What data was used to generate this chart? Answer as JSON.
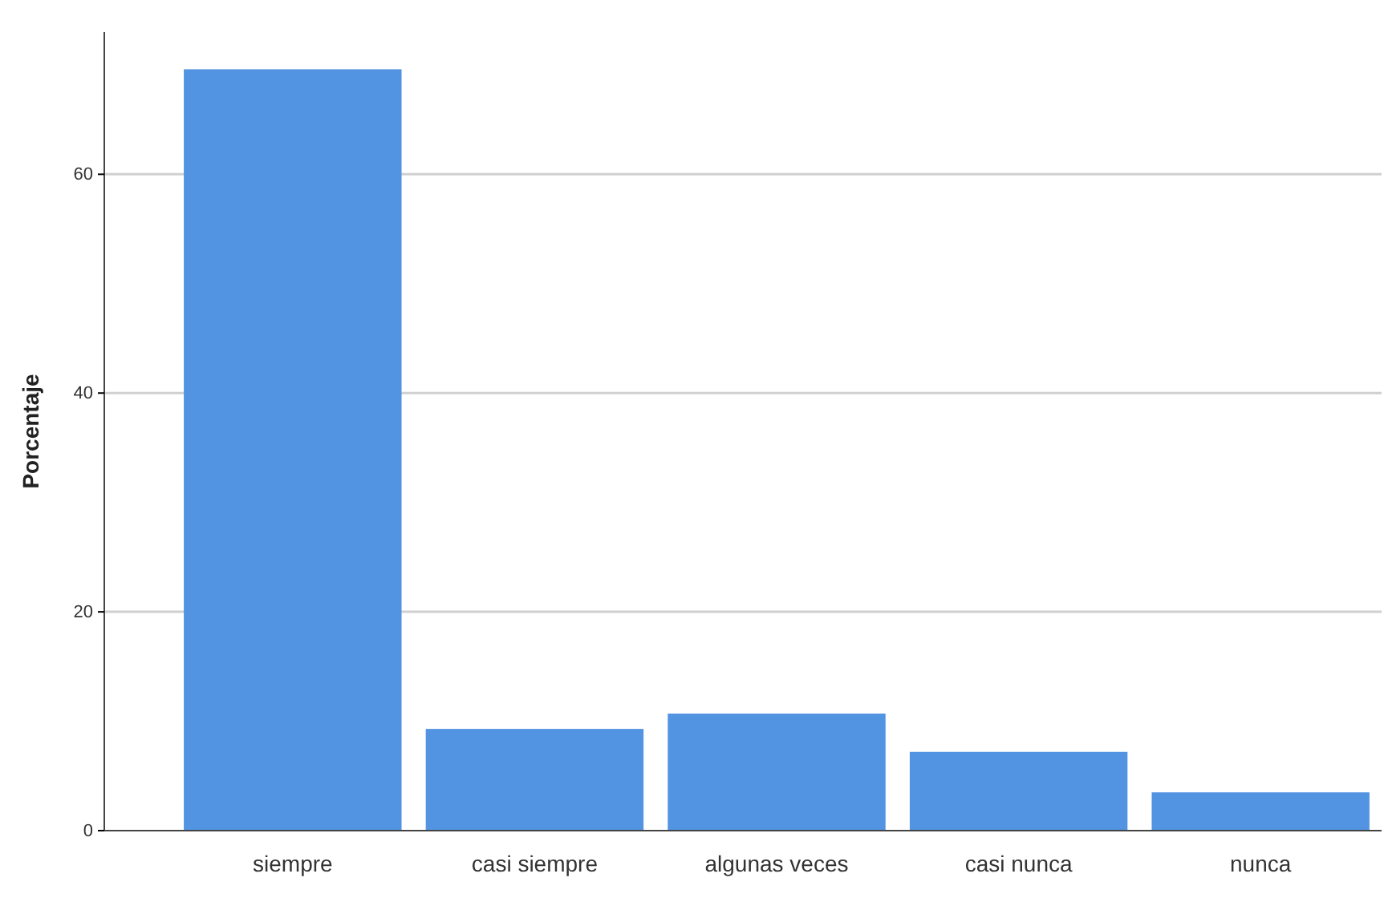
{
  "chart_data": {
    "type": "bar",
    "ylabel": "Porcentaje",
    "categories": [
      "siempre",
      "casi siempre",
      "algunas veces",
      "casi nunca",
      "nunca"
    ],
    "values": [
      69.6,
      9.3,
      10.7,
      7.2,
      3.5
    ],
    "color": "#5294e2",
    "ylim": [
      0,
      73
    ],
    "yticks": [
      0,
      20,
      40,
      60
    ],
    "grid": "y"
  }
}
